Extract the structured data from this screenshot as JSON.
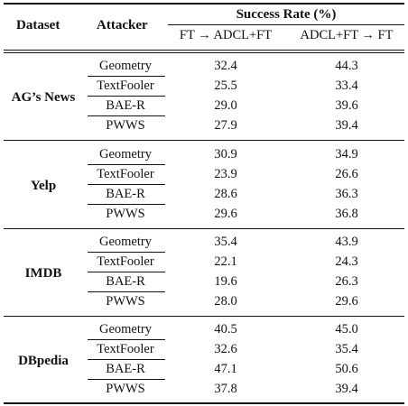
{
  "header": {
    "dataset": "Dataset",
    "attacker": "Attacker",
    "success_rate": "Success Rate (%)",
    "col_a": "FT → ADCL+FT",
    "col_b": "ADCL+FT → FT"
  },
  "groups": [
    {
      "name": "AG’s News",
      "rows": [
        {
          "attacker": "Geometry",
          "a": "32.4",
          "b": "44.3"
        },
        {
          "attacker": "TextFooler",
          "a": "25.5",
          "b": "33.4"
        },
        {
          "attacker": "BAE-R",
          "a": "29.0",
          "b": "39.6"
        },
        {
          "attacker": "PWWS",
          "a": "27.9",
          "b": "39.4"
        }
      ]
    },
    {
      "name": "Yelp",
      "rows": [
        {
          "attacker": "Geometry",
          "a": "30.9",
          "b": "34.9"
        },
        {
          "attacker": "TextFooler",
          "a": "23.9",
          "b": "26.6"
        },
        {
          "attacker": "BAE-R",
          "a": "28.6",
          "b": "36.3"
        },
        {
          "attacker": "PWWS",
          "a": "29.6",
          "b": "36.8"
        }
      ]
    },
    {
      "name": "IMDB",
      "rows": [
        {
          "attacker": "Geometry",
          "a": "35.4",
          "b": "43.9"
        },
        {
          "attacker": "TextFooler",
          "a": "22.1",
          "b": "24.3"
        },
        {
          "attacker": "BAE-R",
          "a": "19.6",
          "b": "26.3"
        },
        {
          "attacker": "PWWS",
          "a": "28.0",
          "b": "29.6"
        }
      ]
    },
    {
      "name": "DBpedia",
      "rows": [
        {
          "attacker": "Geometry",
          "a": "40.5",
          "b": "45.0"
        },
        {
          "attacker": "TextFooler",
          "a": "32.6",
          "b": "35.4"
        },
        {
          "attacker": "BAE-R",
          "a": "47.1",
          "b": "50.6"
        },
        {
          "attacker": "PWWS",
          "a": "37.8",
          "b": "39.4"
        }
      ]
    }
  ]
}
